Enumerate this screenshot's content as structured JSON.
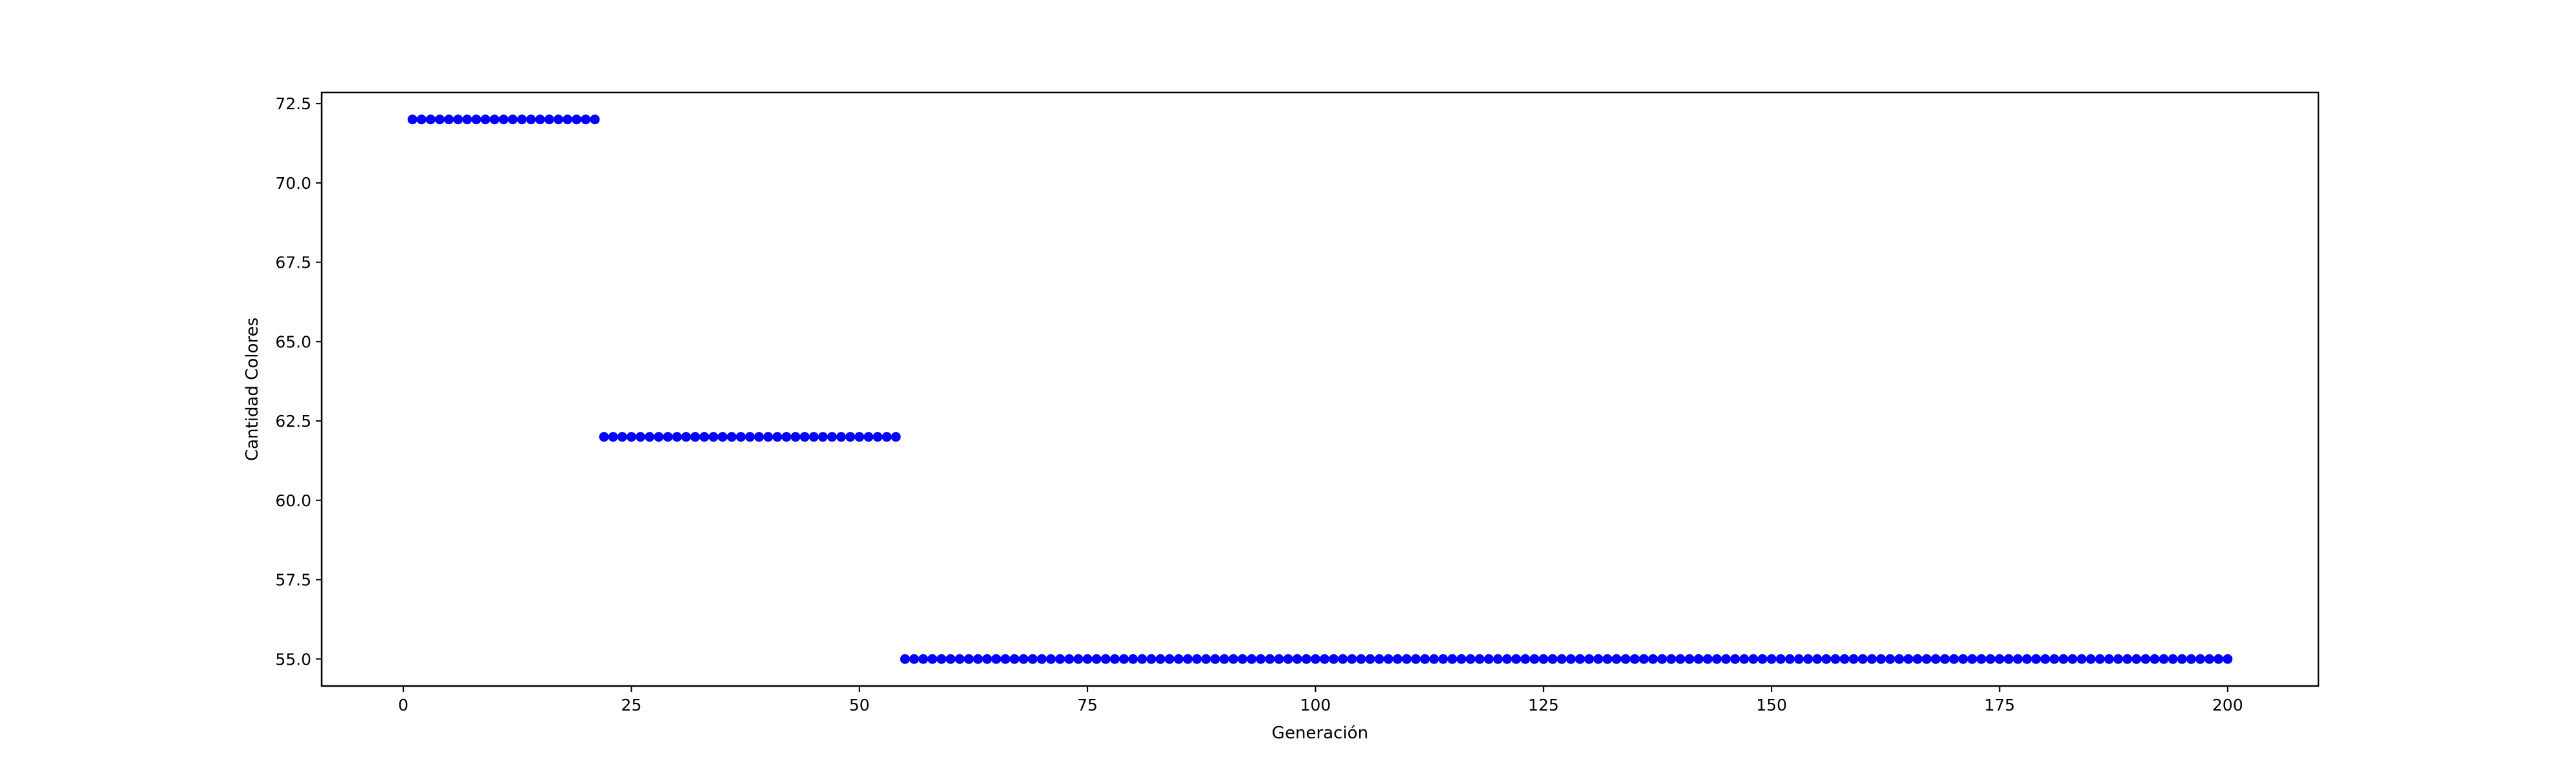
{
  "chart_data": {
    "type": "scatter",
    "title": "",
    "xlabel": "Generación",
    "ylabel": "Cantidad Colores",
    "xlim": [
      -8.95,
      209.95
    ],
    "ylim": [
      54.15,
      72.85
    ],
    "xticks": [
      {
        "value": 0,
        "label": "0"
      },
      {
        "value": 25,
        "label": "25"
      },
      {
        "value": 50,
        "label": "50"
      },
      {
        "value": 75,
        "label": "75"
      },
      {
        "value": 100,
        "label": "100"
      },
      {
        "value": 125,
        "label": "125"
      },
      {
        "value": 150,
        "label": "150"
      },
      {
        "value": 175,
        "label": "175"
      },
      {
        "value": 200,
        "label": "200"
      }
    ],
    "yticks": [
      {
        "value": 55.0,
        "label": "55.0"
      },
      {
        "value": 57.5,
        "label": "57.5"
      },
      {
        "value": 60.0,
        "label": "60.0"
      },
      {
        "value": 62.5,
        "label": "62.5"
      },
      {
        "value": 65.0,
        "label": "65.0"
      },
      {
        "value": 67.5,
        "label": "67.5"
      },
      {
        "value": 70.0,
        "label": "70.0"
      },
      {
        "value": 72.5,
        "label": "72.5"
      }
    ],
    "grid": false,
    "legend": "none",
    "marker_color": "#0000ff",
    "series": [
      {
        "segments": [
          {
            "x_from": 1,
            "x_to": 21,
            "y": 72
          },
          {
            "x_from": 22,
            "x_to": 54,
            "y": 62
          },
          {
            "x_from": 55,
            "x_to": 200,
            "y": 55
          }
        ]
      }
    ]
  }
}
